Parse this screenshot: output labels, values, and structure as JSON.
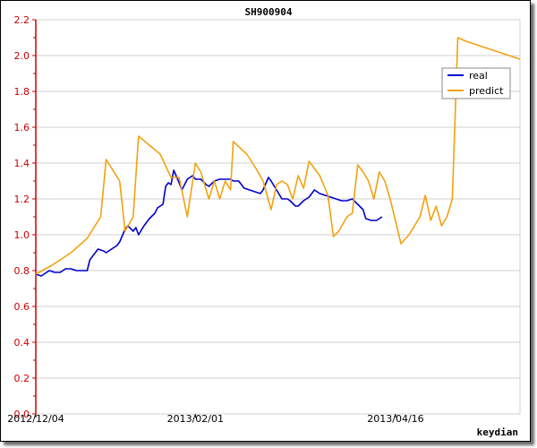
{
  "chart_data": {
    "type": "line",
    "title": "SH900904",
    "xlabel": "",
    "ylabel": "",
    "footer": "keydian",
    "ylim": [
      0,
      2.2
    ],
    "xlim": [
      "2012-12-04",
      "2013-06-01"
    ],
    "yticks": [
      "0.0",
      "0.2",
      "0.4",
      "0.6",
      "0.8",
      "1.0",
      "1.2",
      "1.4",
      "1.6",
      "1.8",
      "2.0",
      "2.2"
    ],
    "xticks": [
      {
        "label": "2012/12/04",
        "date": "2012-12-04"
      },
      {
        "label": "2013/02/01",
        "date": "2013-02-01"
      },
      {
        "label": "2013/04/16",
        "date": "2013-04-16"
      }
    ],
    "grid": true,
    "legend": "top-right",
    "colors": {
      "axis_y": "#cc0000",
      "grid": "#d0d0d0"
    },
    "series": [
      {
        "name": "real",
        "color": "#0000cc",
        "points": [
          [
            "2012-12-04",
            0.78
          ],
          [
            "2012-12-06",
            0.77
          ],
          [
            "2012-12-07",
            0.78
          ],
          [
            "2012-12-09",
            0.8
          ],
          [
            "2012-12-11",
            0.79
          ],
          [
            "2012-12-13",
            0.79
          ],
          [
            "2012-12-15",
            0.81
          ],
          [
            "2012-12-17",
            0.81
          ],
          [
            "2012-12-19",
            0.8
          ],
          [
            "2012-12-21",
            0.8
          ],
          [
            "2012-12-23",
            0.8
          ],
          [
            "2012-12-24",
            0.86
          ],
          [
            "2012-12-26",
            0.9
          ],
          [
            "2012-12-27",
            0.92
          ],
          [
            "2012-12-29",
            0.91
          ],
          [
            "2012-12-30",
            0.9
          ],
          [
            "2013-01-01",
            0.92
          ],
          [
            "2013-01-03",
            0.94
          ],
          [
            "2013-01-04",
            0.96
          ],
          [
            "2013-01-06",
            1.03
          ],
          [
            "2013-01-07",
            1.05
          ],
          [
            "2013-01-09",
            1.02
          ],
          [
            "2013-01-10",
            1.04
          ],
          [
            "2013-01-11",
            1.0
          ],
          [
            "2013-01-13",
            1.05
          ],
          [
            "2013-01-15",
            1.09
          ],
          [
            "2013-01-17",
            1.12
          ],
          [
            "2013-01-18",
            1.15
          ],
          [
            "2013-01-20",
            1.17
          ],
          [
            "2013-01-21",
            1.27
          ],
          [
            "2013-01-22",
            1.29
          ],
          [
            "2013-01-23",
            1.28
          ],
          [
            "2013-01-24",
            1.36
          ],
          [
            "2013-01-26",
            1.29
          ],
          [
            "2013-01-27",
            1.25
          ],
          [
            "2013-01-29",
            1.31
          ],
          [
            "2013-01-31",
            1.33
          ],
          [
            "2013-02-01",
            1.31
          ],
          [
            "2013-02-03",
            1.31
          ],
          [
            "2013-02-05",
            1.28
          ],
          [
            "2013-02-06",
            1.27
          ],
          [
            "2013-02-08",
            1.3
          ],
          [
            "2013-02-10",
            1.31
          ],
          [
            "2013-02-12",
            1.31
          ],
          [
            "2013-02-14",
            1.31
          ],
          [
            "2013-02-15",
            1.3
          ],
          [
            "2013-02-17",
            1.3
          ],
          [
            "2013-02-19",
            1.26
          ],
          [
            "2013-02-21",
            1.25
          ],
          [
            "2013-02-23",
            1.24
          ],
          [
            "2013-02-25",
            1.23
          ],
          [
            "2013-02-26",
            1.25
          ],
          [
            "2013-02-28",
            1.32
          ],
          [
            "2013-03-01",
            1.3
          ],
          [
            "2013-03-03",
            1.25
          ],
          [
            "2013-03-05",
            1.2
          ],
          [
            "2013-03-07",
            1.2
          ],
          [
            "2013-03-08",
            1.19
          ],
          [
            "2013-03-10",
            1.16
          ],
          [
            "2013-03-11",
            1.16
          ],
          [
            "2013-03-13",
            1.19
          ],
          [
            "2013-03-15",
            1.21
          ],
          [
            "2013-03-17",
            1.25
          ],
          [
            "2013-03-19",
            1.23
          ],
          [
            "2013-03-21",
            1.22
          ],
          [
            "2013-03-23",
            1.21
          ],
          [
            "2013-03-25",
            1.2
          ],
          [
            "2013-03-27",
            1.19
          ],
          [
            "2013-03-29",
            1.19
          ],
          [
            "2013-03-31",
            1.2
          ],
          [
            "2013-04-02",
            1.17
          ],
          [
            "2013-04-04",
            1.14
          ],
          [
            "2013-04-05",
            1.09
          ],
          [
            "2013-04-07",
            1.08
          ],
          [
            "2013-04-09",
            1.08
          ],
          [
            "2013-04-11",
            1.1
          ]
        ]
      },
      {
        "name": "predict",
        "color": "#f2a20f",
        "points": [
          [
            "2012-12-04",
            0.78
          ],
          [
            "2012-12-10",
            0.83
          ],
          [
            "2012-12-17",
            0.9
          ],
          [
            "2012-12-23",
            0.98
          ],
          [
            "2012-12-28",
            1.1
          ],
          [
            "2012-12-30",
            1.42
          ],
          [
            "2013-01-04",
            1.3
          ],
          [
            "2013-01-06",
            1.02
          ],
          [
            "2013-01-09",
            1.1
          ],
          [
            "2013-01-11",
            1.55
          ],
          [
            "2013-01-19",
            1.45
          ],
          [
            "2013-01-23",
            1.32
          ],
          [
            "2013-01-26",
            1.32
          ],
          [
            "2013-01-29",
            1.1
          ],
          [
            "2013-02-01",
            1.4
          ],
          [
            "2013-02-03",
            1.35
          ],
          [
            "2013-02-06",
            1.2
          ],
          [
            "2013-02-08",
            1.3
          ],
          [
            "2013-02-10",
            1.2
          ],
          [
            "2013-02-12",
            1.3
          ],
          [
            "2013-02-14",
            1.25
          ],
          [
            "2013-02-15",
            1.52
          ],
          [
            "2013-02-20",
            1.45
          ],
          [
            "2013-02-23",
            1.38
          ],
          [
            "2013-02-26",
            1.3
          ],
          [
            "2013-03-01",
            1.14
          ],
          [
            "2013-03-03",
            1.28
          ],
          [
            "2013-03-05",
            1.3
          ],
          [
            "2013-03-07",
            1.28
          ],
          [
            "2013-03-09",
            1.2
          ],
          [
            "2013-03-11",
            1.33
          ],
          [
            "2013-03-13",
            1.26
          ],
          [
            "2013-03-15",
            1.41
          ],
          [
            "2013-03-19",
            1.33
          ],
          [
            "2013-03-22",
            1.22
          ],
          [
            "2013-03-24",
            0.99
          ],
          [
            "2013-03-26",
            1.02
          ],
          [
            "2013-03-29",
            1.1
          ],
          [
            "2013-03-31",
            1.12
          ],
          [
            "2013-04-02",
            1.39
          ],
          [
            "2013-04-04",
            1.35
          ],
          [
            "2013-04-06",
            1.3
          ],
          [
            "2013-04-08",
            1.2
          ],
          [
            "2013-04-10",
            1.35
          ],
          [
            "2013-04-12",
            1.3
          ],
          [
            "2013-04-14",
            1.2
          ],
          [
            "2013-04-18",
            0.95
          ],
          [
            "2013-04-21",
            1.0
          ],
          [
            "2013-04-23",
            1.05
          ],
          [
            "2013-04-25",
            1.1
          ],
          [
            "2013-04-27",
            1.22
          ],
          [
            "2013-04-29",
            1.08
          ],
          [
            "2013-05-01",
            1.16
          ],
          [
            "2013-05-03",
            1.05
          ],
          [
            "2013-05-05",
            1.1
          ],
          [
            "2013-05-07",
            1.2
          ],
          [
            "2013-05-09",
            2.1
          ],
          [
            "2013-05-12",
            2.08
          ],
          [
            "2013-05-16",
            2.06
          ],
          [
            "2013-05-20",
            2.04
          ],
          [
            "2013-05-24",
            2.02
          ],
          [
            "2013-05-28",
            2.0
          ],
          [
            "2013-06-01",
            1.98
          ]
        ]
      }
    ]
  }
}
